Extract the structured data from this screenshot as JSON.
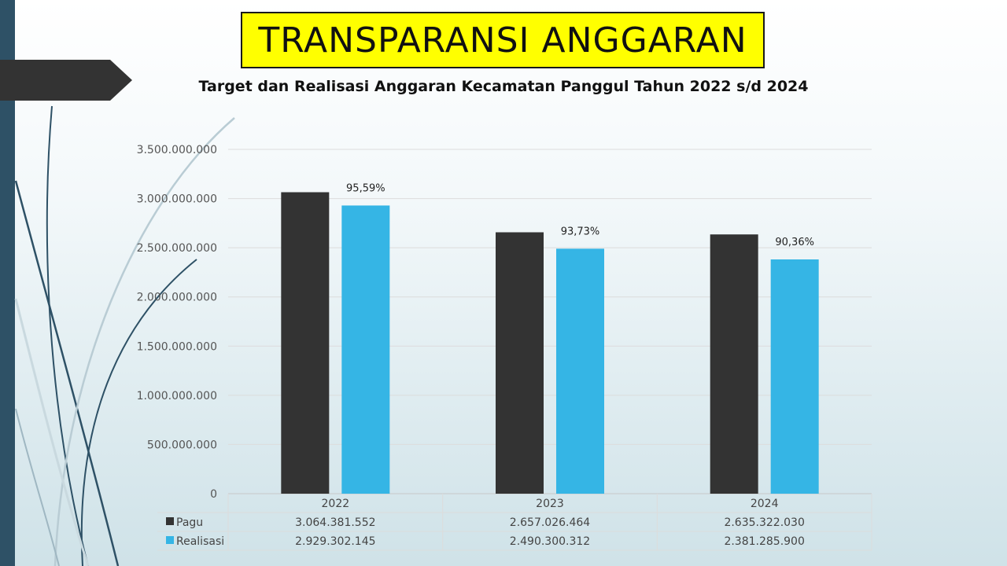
{
  "slide": {
    "title": "TRANSPARANSI ANGGARAN",
    "subtitle": "Target dan Realisasi Anggaran Kecamatan Panggul Tahun 2022 s/d 2024"
  },
  "colors": {
    "pagu": "#333333",
    "realisasi": "#35b5e5",
    "title_bg": "#ffff00",
    "accent_bar": "#2e5166"
  },
  "chart_data": {
    "type": "bar",
    "title": "Target dan Realisasi Anggaran Kecamatan Panggul Tahun 2022 s/d 2024",
    "categories": [
      "2022",
      "2023",
      "2024"
    ],
    "series": [
      {
        "name": "Pagu",
        "values": [
          3064381552,
          2657026464,
          2635322030
        ],
        "display": [
          "3.064.381.552",
          "2.657.026.464",
          "2.635.322.030"
        ]
      },
      {
        "name": "Realisasi",
        "values": [
          2929302145,
          2490300312,
          2381285900
        ],
        "display": [
          "2.929.302.145",
          "2.490.300.312",
          "2.381.285.900"
        ]
      }
    ],
    "percent_labels": [
      "95,59%",
      "93,73%",
      "90,36%"
    ],
    "ylim": [
      0,
      3500000000
    ],
    "yticks": [
      0,
      500000000,
      1000000000,
      1500000000,
      2000000000,
      2500000000,
      3000000000,
      3500000000
    ],
    "ytick_labels": [
      "0",
      "500.000.000",
      "1.000.000.000",
      "1.500.000.000",
      "2.000.000.000",
      "2.500.000.000",
      "3.000.000.000",
      "3.500.000.000"
    ],
    "grid": true,
    "legend": "data-table-below"
  }
}
